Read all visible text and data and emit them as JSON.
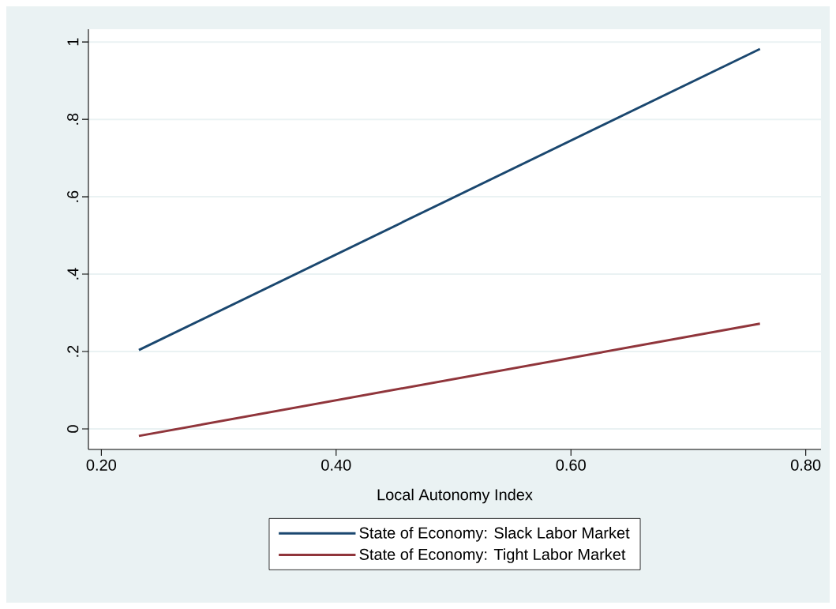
{
  "chart_data": {
    "type": "line",
    "xlabel": "Local Autonomy Index",
    "x": [
      0.232,
      0.761
    ],
    "series": [
      {
        "name": "State of Economy: Slack Labor Market",
        "color": "#1a476f",
        "values": [
          0.204,
          0.982
        ]
      },
      {
        "name": "State of Economy: Tight Labor Market",
        "color": "#90353b",
        "values": [
          -0.018,
          0.272
        ]
      }
    ],
    "xlim": [
      0.189,
      0.813
    ],
    "ylim": [
      -0.053,
      1.033
    ],
    "xticks": [
      {
        "value": 0.2,
        "label": "0.20"
      },
      {
        "value": 0.4,
        "label": "0.40"
      },
      {
        "value": 0.6,
        "label": "0.60"
      },
      {
        "value": 0.8,
        "label": "0.80"
      }
    ],
    "yticks": [
      0,
      {
        "value": 0.2,
        "label": ".2"
      },
      {
        "value": 0.4,
        "label": ".4"
      },
      {
        "value": 0.6,
        "label": ".6"
      },
      {
        "value": 0.8,
        "label": ".8"
      },
      1
    ],
    "grid": "y",
    "legend": "bottom",
    "marker": "none",
    "line_style": "solid"
  }
}
